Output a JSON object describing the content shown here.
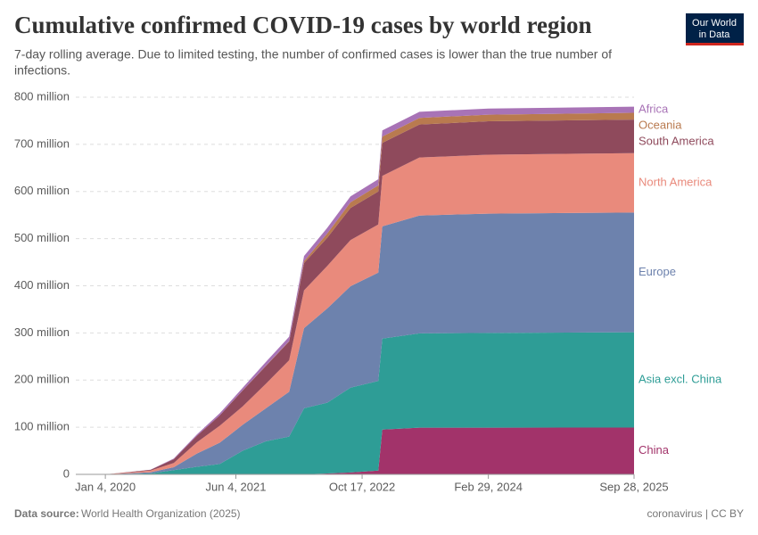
{
  "chart_data": {
    "type": "stacked-area",
    "title": "Cumulative confirmed COVID-19 cases by world region",
    "subtitle": [
      "7-day rolling average. Due to limited testing, the number of confirmed cases is lower than the true number of",
      "infections."
    ],
    "x": [
      "2020-01-04",
      "2020-07-01",
      "2020-10-01",
      "2021-01-01",
      "2021-04-01",
      "2021-07-01",
      "2021-10-01",
      "2022-01-01",
      "2022-03-01",
      "2022-06-01",
      "2022-09-01",
      "2022-12-20",
      "2023-01-05",
      "2023-06-01",
      "2024-02-29",
      "2025-09-28"
    ],
    "xlim": [
      "2019-09-09",
      "2025-09-28"
    ],
    "xticks": [
      {
        "value": "2020-01-04",
        "label": "Jan 4, 2020"
      },
      {
        "value": "2021-06-04",
        "label": "Jun 4, 2021"
      },
      {
        "value": "2022-10-17",
        "label": "Oct 17, 2022"
      },
      {
        "value": "2024-02-29",
        "label": "Feb 29, 2024"
      },
      {
        "value": "2025-09-28",
        "label": "Sep 28, 2025"
      }
    ],
    "ylim": [
      0,
      800
    ],
    "yticks": [
      0,
      {
        "value": 100,
        "label": "100 million"
      },
      {
        "value": 200,
        "label": "200 million"
      },
      {
        "value": 300,
        "label": "300 million"
      },
      {
        "value": 400,
        "label": "400 million"
      },
      {
        "value": 500,
        "label": "500 million"
      },
      {
        "value": 600,
        "label": "600 million"
      },
      {
        "value": 700,
        "label": "700 million"
      },
      {
        "value": 800,
        "label": "800 million"
      }
    ],
    "grid": true,
    "series": [
      {
        "name": "China",
        "color": "#a2336a",
        "values": [
          0,
          0.085,
          0.09,
          0.1,
          0.1,
          0.1,
          0.1,
          0.1,
          0.2,
          2,
          4,
          8,
          95,
          99,
          99,
          99.4
        ]
      },
      {
        "name": "Asia excl. China",
        "color": "#2e9d96",
        "values": [
          0,
          2,
          9,
          16,
          22,
          50,
          70,
          80,
          140,
          150,
          180,
          190,
          193,
          200,
          201,
          202
        ]
      },
      {
        "name": "Europe",
        "color": "#6d82ad",
        "values": [
          0,
          2.5,
          6,
          28,
          45,
          55,
          70,
          95,
          170,
          200,
          215,
          230,
          238,
          250,
          253,
          254
        ]
      },
      {
        "name": "North America",
        "color": "#e98a7c",
        "values": [
          0,
          3.5,
          9,
          24,
          36,
          39,
          52,
          67,
          80,
          90,
          98,
          102,
          107,
          123,
          125,
          126
        ]
      },
      {
        "name": "South America",
        "color": "#8f4a5c",
        "values": [
          0,
          1.5,
          8,
          14,
          22,
          34,
          38,
          40,
          58,
          60,
          68,
          70,
          70,
          70,
          71,
          71
        ]
      },
      {
        "name": "Oceania",
        "color": "#b97a4f",
        "values": [
          0,
          0.01,
          0.03,
          0.05,
          0.06,
          0.1,
          0.3,
          0.6,
          4,
          9,
          12,
          13,
          13.5,
          14,
          14,
          14.5
        ]
      },
      {
        "name": "Africa",
        "color": "#a873b6",
        "values": [
          0,
          0.4,
          1.5,
          2.8,
          4.3,
          5.5,
          8.2,
          9.2,
          11,
          12,
          12.5,
          13,
          13,
          13,
          13,
          13
        ]
      }
    ]
  },
  "logo": [
    "Our World",
    "in Data"
  ],
  "footer": {
    "source_label": "Data source:",
    "source": "World Health Organization (2025)",
    "license": "coronavirus | CC BY"
  }
}
